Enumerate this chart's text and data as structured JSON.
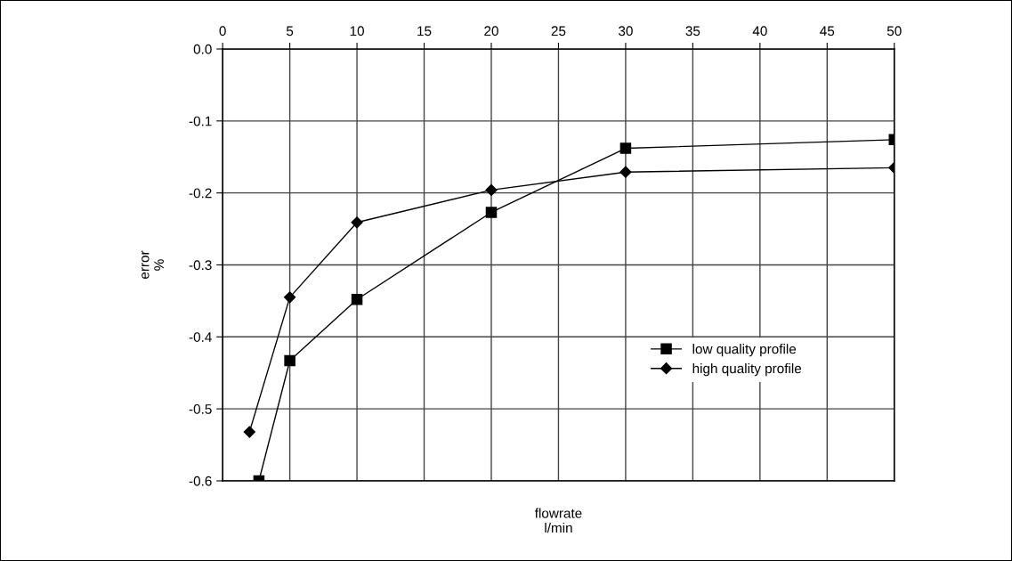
{
  "chart_data": {
    "type": "line",
    "xlabel": "flowrate\nl/min",
    "ylabel": "error\n%",
    "xlim": [
      0,
      50
    ],
    "xticks": [
      0,
      5,
      10,
      15,
      20,
      25,
      30,
      35,
      40,
      45,
      50
    ],
    "ylim": [
      -0.6,
      0
    ],
    "yticks": [
      {
        "value": 0,
        "label": "0.0"
      },
      {
        "value": -0.1,
        "label": "-0.1"
      },
      {
        "value": -0.2,
        "label": "-0.2"
      },
      {
        "value": -0.3,
        "label": "-0.3"
      },
      {
        "value": -0.4,
        "label": "-0.4"
      },
      {
        "value": -0.5,
        "label": "-0.5"
      },
      {
        "value": -0.6,
        "label": "-0.6"
      }
    ],
    "grid": true,
    "legend": "right",
    "line_style": "solid",
    "series": [
      {
        "name": "low quality profile",
        "color": "#000000",
        "marker": "square",
        "x": [
          2.7,
          5,
          10,
          20,
          30,
          50
        ],
        "values": [
          -0.6,
          -0.433,
          -0.348,
          -0.227,
          -0.138,
          -0.126
        ]
      },
      {
        "name": "high quality profile",
        "color": "#000000",
        "marker": "diamond",
        "x": [
          2,
          5,
          10,
          20,
          30,
          50
        ],
        "values": [
          -0.532,
          -0.345,
          -0.241,
          -0.196,
          -0.171,
          -0.165
        ]
      }
    ]
  }
}
